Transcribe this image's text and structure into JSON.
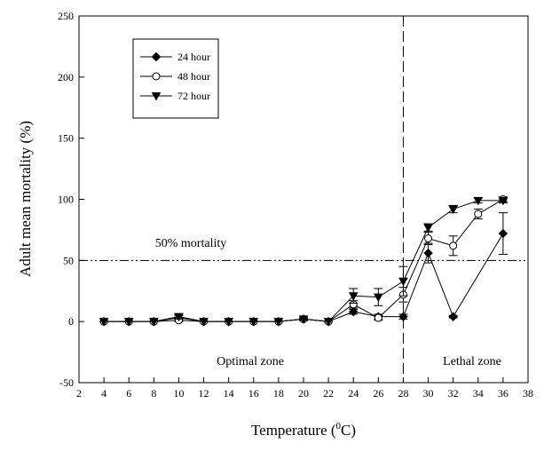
{
  "chart_data": {
    "type": "line",
    "xlabel_main": "Temperature (",
    "xlabel_sup": "0",
    "xlabel_end": "C)",
    "ylabel": "Adult mean mortality (%)",
    "xlim": [
      2,
      38
    ],
    "ylim": [
      -50,
      250
    ],
    "xticks": [
      2,
      4,
      6,
      8,
      10,
      12,
      14,
      16,
      18,
      20,
      22,
      24,
      26,
      28,
      30,
      32,
      34,
      36,
      38
    ],
    "yticks": [
      -50,
      0,
      50,
      100,
      150,
      200,
      250
    ],
    "legend_position": "top-left",
    "threshold": {
      "y": 50,
      "label": "50% mortality"
    },
    "vertical_line": {
      "x": 28
    },
    "zones": {
      "left_label": "Optimal zone",
      "right_label": "Lethal zone"
    },
    "series": [
      {
        "name": "24 hour",
        "marker": "diamond-filled",
        "x": [
          4,
          6,
          8,
          10,
          12,
          14,
          16,
          18,
          20,
          22,
          24,
          26,
          28,
          30,
          32,
          36
        ],
        "y": [
          0,
          0,
          0,
          3,
          0,
          0,
          0,
          0,
          2,
          0,
          8,
          4,
          4,
          56,
          4,
          72
        ],
        "err": [
          0,
          0,
          0,
          2,
          0,
          0,
          0,
          0,
          1,
          0,
          2,
          2,
          2,
          8,
          1,
          17
        ]
      },
      {
        "name": "48 hour",
        "marker": "circle-open",
        "x": [
          4,
          6,
          8,
          10,
          12,
          14,
          16,
          18,
          20,
          22,
          24,
          26,
          28,
          30,
          32,
          34,
          36
        ],
        "y": [
          0,
          0,
          0,
          1,
          0,
          0,
          0,
          0,
          2,
          0,
          14,
          3,
          22,
          68,
          62,
          88,
          100
        ],
        "err": [
          0,
          0,
          0,
          1,
          0,
          0,
          0,
          0,
          1,
          0,
          3,
          2,
          6,
          5,
          8,
          4,
          2
        ]
      },
      {
        "name": "72 hour",
        "marker": "triangle-down-filled",
        "x": [
          4,
          6,
          8,
          10,
          12,
          14,
          16,
          18,
          20,
          22,
          24,
          26,
          28,
          30,
          32,
          34,
          36
        ],
        "y": [
          0,
          0,
          0,
          4,
          0,
          0,
          0,
          0,
          2,
          0,
          21,
          20,
          33,
          77,
          92,
          99,
          99
        ],
        "err": [
          0,
          0,
          0,
          2,
          0,
          0,
          0,
          0,
          1,
          0,
          6,
          7,
          12,
          3,
          3,
          2,
          2
        ]
      }
    ]
  }
}
